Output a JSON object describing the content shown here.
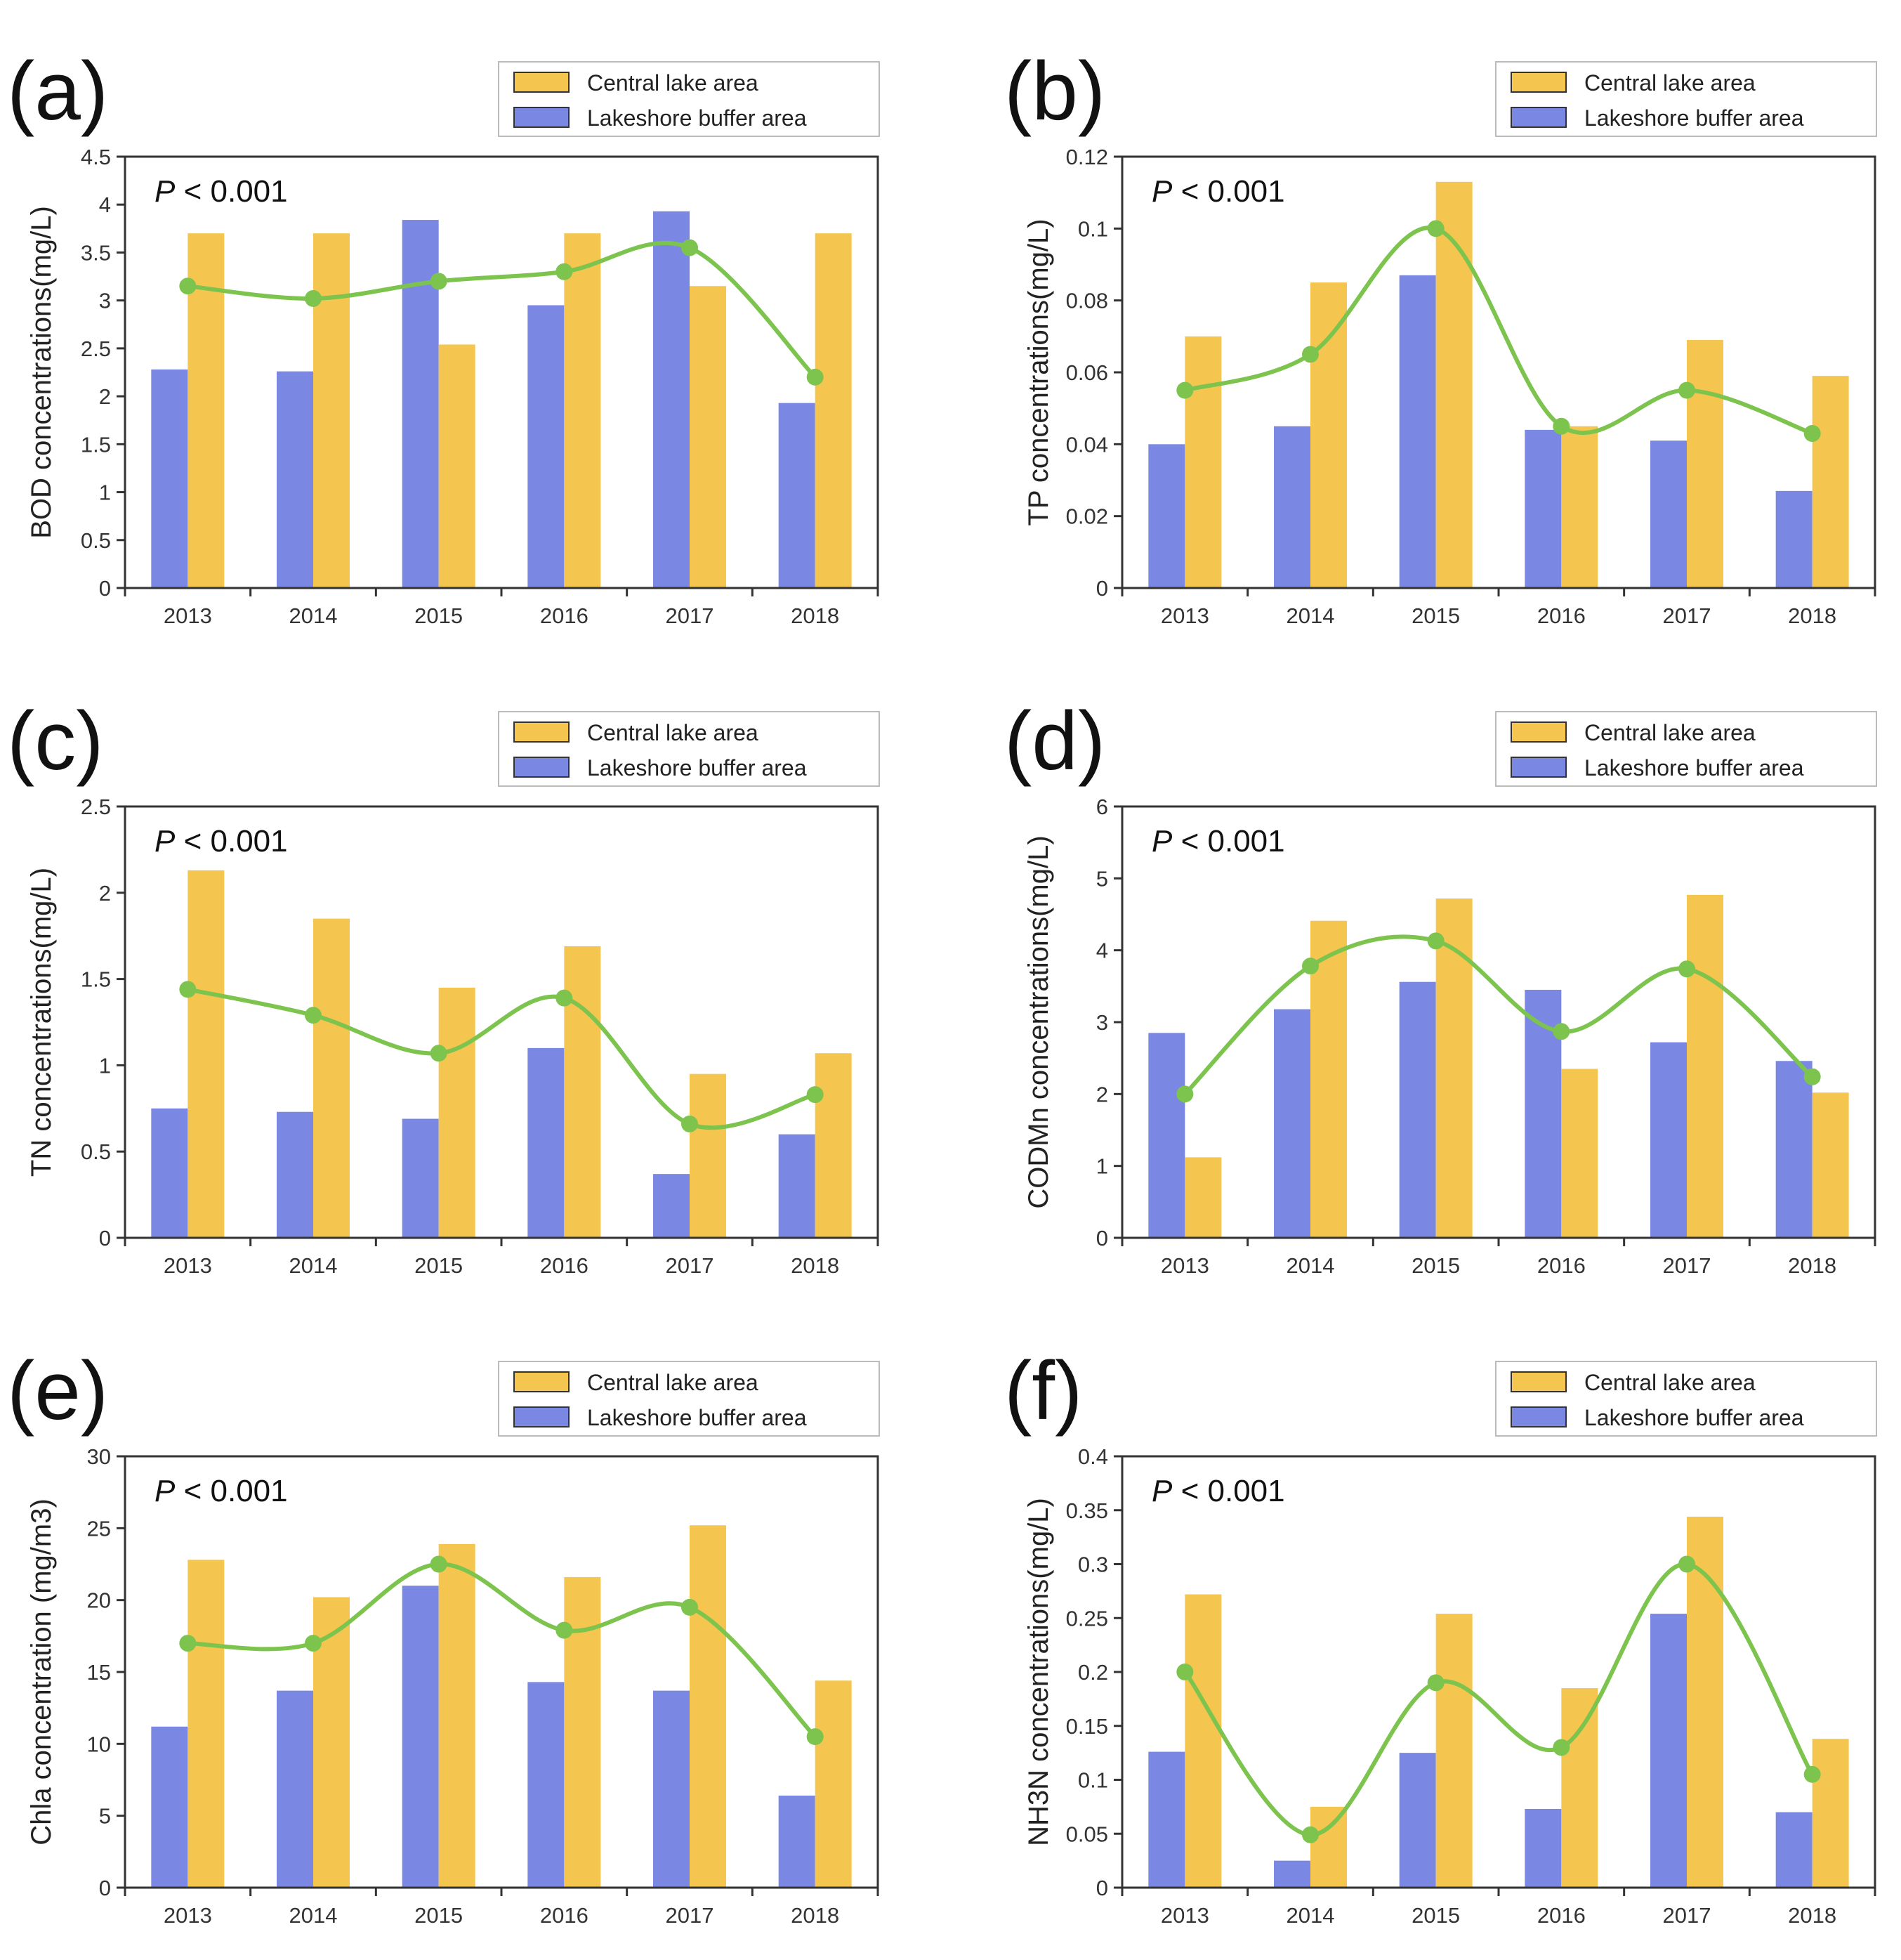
{
  "colors": {
    "central": "#F5C64F",
    "buffer": "#7B88E3",
    "trend": "#7CC44E",
    "axis": "#333333"
  },
  "legend": {
    "central_label": "Central lake area",
    "buffer_label": "Lakeshore buffer area"
  },
  "chart_data": [
    {
      "panel": "(a)",
      "type": "bar",
      "categories": [
        "2013",
        "2014",
        "2015",
        "2016",
        "2017",
        "2018"
      ],
      "series": [
        {
          "name": "Lakeshore buffer area",
          "values": [
            2.28,
            2.26,
            3.84,
            2.95,
            3.93,
            1.93
          ]
        },
        {
          "name": "Central lake area",
          "values": [
            3.7,
            3.7,
            2.54,
            3.7,
            3.15,
            3.7
          ]
        },
        {
          "name": "trend",
          "values": [
            3.15,
            3.02,
            3.2,
            3.3,
            3.55,
            2.2
          ]
        }
      ],
      "ylabel": "BOD concentrations(mg/L)",
      "yticks": [
        "0",
        "0.5",
        "1",
        "1.5",
        "2",
        "2.5",
        "3",
        "3.5",
        "4",
        "4.5"
      ],
      "ylim": [
        0,
        4.5
      ],
      "p_value": "< 0.001",
      "p_symbol": "P"
    },
    {
      "panel": "(b)",
      "type": "bar",
      "categories": [
        "2013",
        "2014",
        "2015",
        "2016",
        "2017",
        "2018"
      ],
      "series": [
        {
          "name": "Lakeshore buffer area",
          "values": [
            0.04,
            0.045,
            0.087,
            0.044,
            0.041,
            0.027
          ]
        },
        {
          "name": "Central lake area",
          "values": [
            0.07,
            0.085,
            0.113,
            0.045,
            0.069,
            0.059
          ]
        },
        {
          "name": "trend",
          "values": [
            0.055,
            0.065,
            0.1,
            0.045,
            0.055,
            0.043
          ]
        }
      ],
      "ylabel": "TP concentrations(mg/L)",
      "yticks": [
        "0",
        "0.02",
        "0.04",
        "0.06",
        "0.08",
        "0.1",
        "0.12"
      ],
      "ylim": [
        0,
        0.12
      ],
      "p_value": "< 0.001",
      "p_symbol": "P"
    },
    {
      "panel": "(c)",
      "type": "bar",
      "categories": [
        "2013",
        "2014",
        "2015",
        "2016",
        "2017",
        "2018"
      ],
      "series": [
        {
          "name": "Lakeshore buffer area",
          "values": [
            0.75,
            0.73,
            0.69,
            1.1,
            0.37,
            0.6
          ]
        },
        {
          "name": "Central lake area",
          "values": [
            2.13,
            1.85,
            1.45,
            1.69,
            0.95,
            1.07
          ]
        },
        {
          "name": "trend",
          "values": [
            1.44,
            1.29,
            1.07,
            1.39,
            0.66,
            0.83
          ]
        }
      ],
      "ylabel": "TN concentrations(mg/L)",
      "yticks": [
        "0",
        "0.5",
        "1",
        "1.5",
        "2",
        "2.5"
      ],
      "ylim": [
        0,
        2.5
      ],
      "p_value": "< 0.001",
      "p_symbol": "P"
    },
    {
      "panel": "(d)",
      "type": "bar",
      "categories": [
        "2013",
        "2014",
        "2015",
        "2016",
        "2017",
        "2018"
      ],
      "series": [
        {
          "name": "Lakeshore buffer area",
          "values": [
            2.85,
            3.18,
            3.56,
            3.45,
            2.72,
            2.46
          ]
        },
        {
          "name": "Central lake area",
          "values": [
            1.12,
            4.41,
            4.72,
            2.35,
            4.77,
            2.02
          ]
        },
        {
          "name": "trend",
          "values": [
            2.0,
            3.78,
            4.13,
            2.87,
            3.74,
            2.24
          ]
        }
      ],
      "ylabel": "CODMn concentrations(mg/L)",
      "yticks": [
        "0",
        "1",
        "2",
        "3",
        "4",
        "5",
        "6"
      ],
      "ylim": [
        0,
        6
      ],
      "p_value": "< 0.001",
      "p_symbol": "P"
    },
    {
      "panel": "(e)",
      "type": "bar",
      "categories": [
        "2013",
        "2014",
        "2015",
        "2016",
        "2017",
        "2018"
      ],
      "series": [
        {
          "name": "Lakeshore buffer area",
          "values": [
            11.2,
            13.7,
            21.0,
            14.3,
            13.7,
            6.4
          ]
        },
        {
          "name": "Central lake area",
          "values": [
            22.8,
            20.2,
            23.9,
            21.6,
            25.2,
            14.4
          ]
        },
        {
          "name": "trend",
          "values": [
            17.0,
            17.0,
            22.5,
            17.9,
            19.5,
            10.5
          ]
        }
      ],
      "ylabel": "Chla concentration (mg/m3)",
      "yticks": [
        "0",
        "5",
        "10",
        "15",
        "20",
        "25",
        "30"
      ],
      "ylim": [
        0,
        30
      ],
      "p_value": "< 0.001",
      "p_symbol": "P"
    },
    {
      "panel": "(f)",
      "type": "bar",
      "categories": [
        "2013",
        "2014",
        "2015",
        "2016",
        "2017",
        "2018"
      ],
      "series": [
        {
          "name": "Lakeshore buffer area",
          "values": [
            0.126,
            0.025,
            0.125,
            0.073,
            0.254,
            0.07
          ]
        },
        {
          "name": "Central lake area",
          "values": [
            0.272,
            0.075,
            0.254,
            0.185,
            0.344,
            0.138
          ]
        },
        {
          "name": "trend",
          "values": [
            0.2,
            0.049,
            0.19,
            0.13,
            0.3,
            0.105
          ]
        }
      ],
      "ylabel": "NH3N concentrations(mg/L)",
      "yticks": [
        "0",
        "0.05",
        "0.1",
        "0.15",
        "0.2",
        "0.25",
        "0.3",
        "0.35",
        "0.4"
      ],
      "ylim": [
        0,
        0.4
      ],
      "p_value": "< 0.001",
      "p_symbol": "P"
    }
  ]
}
